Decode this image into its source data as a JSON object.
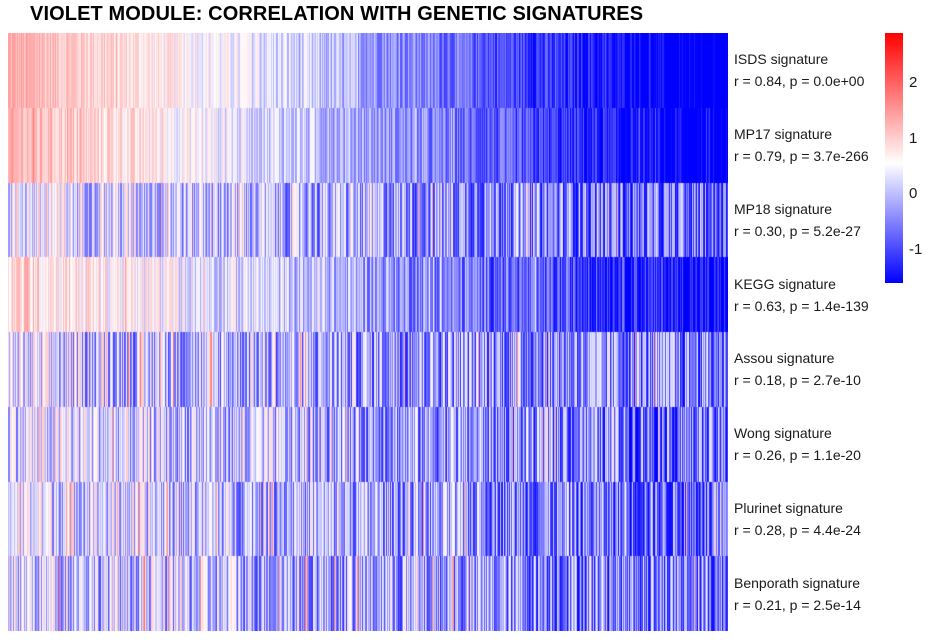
{
  "title": "VIOLET MODULE: CORRELATION WITH GENETIC SIGNATURES",
  "chart_data": {
    "type": "heatmap",
    "title": "VIOLET MODULE: CORRELATION WITH GENETIC SIGNATURES",
    "rows": [
      {
        "name": "ISDS signature",
        "r": 0.84,
        "p": "0.0e+00",
        "stats": "r = 0.84, p = 0.0e+00"
      },
      {
        "name": "MP17 signature",
        "r": 0.79,
        "p": "3.7e-266",
        "stats": "r = 0.79, p = 3.7e-266"
      },
      {
        "name": "MP18 signature",
        "r": 0.3,
        "p": "5.2e-27",
        "stats": "r = 0.30, p = 5.2e-27"
      },
      {
        "name": "KEGG signature",
        "r": 0.63,
        "p": "1.4e-139",
        "stats": "r = 0.63, p = 1.4e-139"
      },
      {
        "name": "Assou signature",
        "r": 0.18,
        "p": "2.7e-10",
        "stats": "r = 0.18, p = 2.7e-10"
      },
      {
        "name": "Wong signature",
        "r": 0.26,
        "p": "1.1e-20",
        "stats": "r = 0.26, p = 1.1e-20"
      },
      {
        "name": "Plurinet signature",
        "r": 0.28,
        "p": "4.4e-24",
        "stats": "r = 0.28, p = 4.4e-24"
      },
      {
        "name": "Benporath signature",
        "r": 0.21,
        "p": "2.5e-14",
        "stats": "r = 0.21, p = 2.5e-14"
      }
    ],
    "color_scale": {
      "low_color": "#0000ff",
      "mid_color": "#ffffff",
      "high_color": "#ff0000",
      "range": [
        -1.6,
        2.9
      ],
      "ticks": [
        2,
        1,
        0,
        -1
      ],
      "tick_labels": [
        "2",
        "1",
        "0",
        "-1"
      ]
    },
    "legend_placement": "top-right"
  }
}
